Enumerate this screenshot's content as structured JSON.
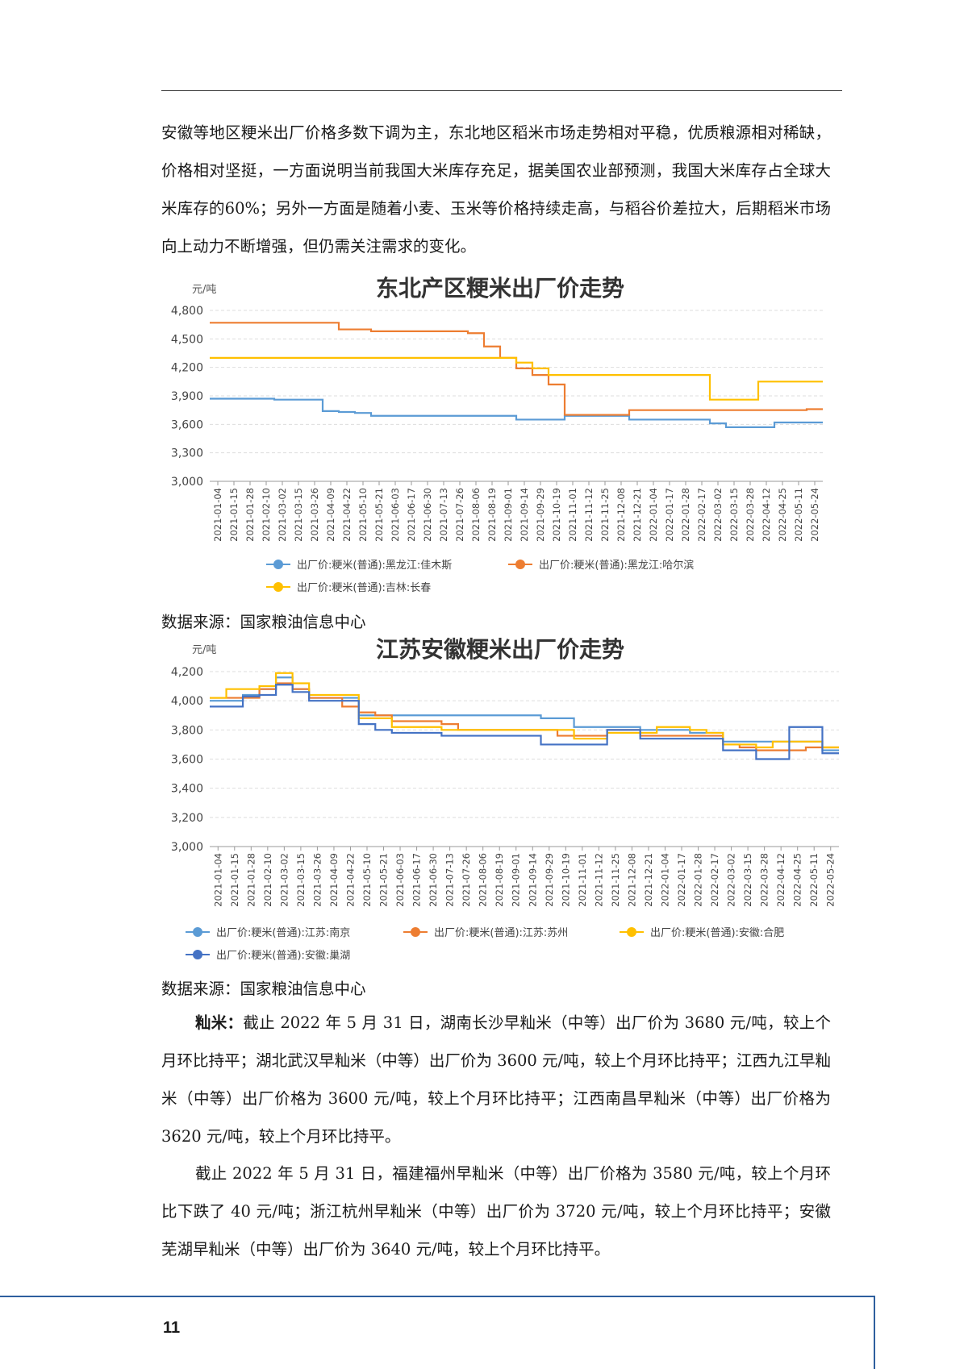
{
  "para1": "安徽等地区粳米出厂价格多数下调为主，东北地区稻米市场走势相对平稳，优质粮源相对稀缺，价格相对坚挺，一方面说明当前我国大米库存充足，据美国农业部预测，我国大米库存占全球大米库存的60%；另外一方面是随着小麦、玉米等价格持续走高，与稻谷价差拉大，后期稻米市场向上动力不断增强，但仍需关注需求的变化。",
  "source1": "数据来源：国家粮油信息中心",
  "source2": "数据来源：国家粮油信息中心",
  "para2_lead": "籼米：",
  "para2_rest": "截止 2022 年 5 月 31 日，湖南长沙早籼米（中等）出厂价为 3680 元/吨，较上个月环比持平；湖北武汉早籼米（中等）出厂价为 3600 元/吨，较上个月环比持平；江西九江早籼米（中等）出厂价格为 3600 元/吨，较上个月环比持平；江西南昌早籼米（中等）出厂价格为 3620 元/吨，较上个月环比持平。",
  "para3": "截止 2022 年 5 月 31 日，福建福州早籼米（中等）出厂价格为 3580 元/吨，较上个月环比下跌了 40 元/吨；浙江杭州早籼米（中等）出厂价为 3720 元/吨，较上个月环比持平；安徽芜湖早籼米（中等）出厂价为 3640 元/吨，较上个月环比持平。",
  "page_number": "11",
  "chart_data": [
    {
      "type": "line",
      "title": "东北产区粳米出厂价走势",
      "ylabel": "元/吨",
      "ylim": [
        3000,
        4800
      ],
      "yticks": [
        "4,800",
        "4,500",
        "4,200",
        "3,900",
        "3,600",
        "3,300",
        "3,000"
      ],
      "categories": [
        "2021-01-04",
        "2021-01-15",
        "2021-01-28",
        "2021-02-10",
        "2021-03-02",
        "2021-03-15",
        "2021-03-26",
        "2021-04-09",
        "2021-04-22",
        "2021-05-10",
        "2021-05-21",
        "2021-06-03",
        "2021-06-17",
        "2021-06-30",
        "2021-07-13",
        "2021-07-26",
        "2021-08-06",
        "2021-08-19",
        "2021-09-01",
        "2021-09-14",
        "2021-09-29",
        "2021-10-19",
        "2021-11-01",
        "2021-11-12",
        "2021-11-25",
        "2021-12-08",
        "2021-12-21",
        "2022-01-04",
        "2022-01-17",
        "2022-01-28",
        "2022-02-17",
        "2022-03-02",
        "2022-03-15",
        "2022-03-28",
        "2022-04-12",
        "2022-04-25",
        "2022-05-11",
        "2022-05-24"
      ],
      "series": [
        {
          "name": "出厂价:粳米(普通):黑龙江:佳木斯",
          "color": "#5b9bd5",
          "values": [
            3870,
            3870,
            3870,
            3870,
            3860,
            3860,
            3860,
            3740,
            3730,
            3720,
            3690,
            3690,
            3690,
            3690,
            3690,
            3690,
            3690,
            3690,
            3690,
            3650,
            3650,
            3650,
            3690,
            3690,
            3690,
            3690,
            3650,
            3650,
            3650,
            3650,
            3650,
            3610,
            3570,
            3570,
            3570,
            3620,
            3620,
            3620
          ]
        },
        {
          "name": "出厂价:粳米(普通):黑龙江:哈尔滨",
          "color": "#ed7d31",
          "values": [
            4670,
            4670,
            4670,
            4670,
            4670,
            4670,
            4670,
            4670,
            4600,
            4600,
            4580,
            4580,
            4580,
            4580,
            4580,
            4580,
            4560,
            4420,
            4300,
            4190,
            4120,
            4020,
            3700,
            3700,
            3700,
            3700,
            3750,
            3750,
            3750,
            3750,
            3750,
            3750,
            3750,
            3750,
            3750,
            3750,
            3750,
            3760
          ]
        },
        {
          "name": "出厂价:粳米(普通):吉林:长春",
          "color": "#ffc000",
          "values": [
            4300,
            4300,
            4300,
            4300,
            4300,
            4300,
            4300,
            4300,
            4300,
            4300,
            4300,
            4300,
            4300,
            4300,
            4300,
            4300,
            4300,
            4300,
            4300,
            4250,
            4190,
            4120,
            4120,
            4120,
            4120,
            4120,
            4120,
            4120,
            4120,
            4120,
            4120,
            3860,
            3860,
            3860,
            4050,
            4050,
            4050,
            4050
          ]
        }
      ]
    },
    {
      "type": "line",
      "title": "江苏安徽粳米出厂价走势",
      "ylabel": "元/吨",
      "ylim": [
        3000,
        4200
      ],
      "yticks": [
        "4,200",
        "4,000",
        "3,800",
        "3,600",
        "3,400",
        "3,200",
        "3,000"
      ],
      "categories": [
        "2021-01-04",
        "2021-01-15",
        "2021-01-28",
        "2021-02-10",
        "2021-03-02",
        "2021-03-15",
        "2021-03-26",
        "2021-04-09",
        "2021-04-22",
        "2021-05-10",
        "2021-05-21",
        "2021-06-03",
        "2021-06-17",
        "2021-06-30",
        "2021-07-13",
        "2021-07-26",
        "2021-08-06",
        "2021-08-19",
        "2021-09-01",
        "2021-09-14",
        "2021-09-29",
        "2021-10-19",
        "2021-11-01",
        "2021-11-12",
        "2021-11-25",
        "2021-12-08",
        "2021-12-21",
        "2022-01-04",
        "2022-01-17",
        "2022-01-28",
        "2022-02-17",
        "2022-03-02",
        "2022-03-15",
        "2022-03-28",
        "2022-04-12",
        "2022-04-25",
        "2022-05-11",
        "2022-05-24"
      ],
      "series": [
        {
          "name": "出厂价:粳米(普通):江苏:南京",
          "color": "#5b9bd5",
          "values": [
            4000,
            4000,
            4040,
            4080,
            4160,
            4080,
            4020,
            4020,
            4020,
            3900,
            3900,
            3900,
            3900,
            3900,
            3900,
            3900,
            3900,
            3900,
            3900,
            3900,
            3880,
            3880,
            3820,
            3820,
            3820,
            3820,
            3800,
            3800,
            3800,
            3780,
            3780,
            3720,
            3720,
            3720,
            3720,
            3720,
            3720,
            3660
          ]
        },
        {
          "name": "出厂价:粳米(普通):江苏:苏州",
          "color": "#ed7d31",
          "values": [
            4020,
            4020,
            4020,
            4080,
            4120,
            4080,
            4020,
            4020,
            3960,
            3920,
            3900,
            3860,
            3860,
            3860,
            3840,
            3800,
            3800,
            3800,
            3800,
            3800,
            3800,
            3760,
            3760,
            3760,
            3800,
            3800,
            3760,
            3760,
            3760,
            3760,
            3760,
            3700,
            3680,
            3660,
            3660,
            3660,
            3680,
            3680
          ]
        },
        {
          "name": "出厂价:粳米(普通):安徽:合肥",
          "color": "#ffc000",
          "values": [
            4020,
            4080,
            4080,
            4100,
            4190,
            4120,
            4040,
            4040,
            4040,
            3880,
            3880,
            3820,
            3820,
            3820,
            3800,
            3800,
            3800,
            3800,
            3800,
            3800,
            3800,
            3800,
            3740,
            3740,
            3780,
            3780,
            3780,
            3820,
            3820,
            3800,
            3780,
            3700,
            3700,
            3680,
            3720,
            3720,
            3720,
            3680
          ]
        },
        {
          "name": "出厂价:粳米(普通):安徽:巢湖",
          "color": "#4472c4",
          "values": [
            3960,
            3960,
            4030,
            4040,
            4110,
            4060,
            4000,
            4000,
            4000,
            3840,
            3800,
            3780,
            3780,
            3780,
            3760,
            3760,
            3760,
            3760,
            3760,
            3760,
            3700,
            3700,
            3700,
            3700,
            3800,
            3800,
            3740,
            3740,
            3740,
            3740,
            3740,
            3660,
            3660,
            3600,
            3600,
            3820,
            3820,
            3640
          ]
        }
      ]
    }
  ]
}
